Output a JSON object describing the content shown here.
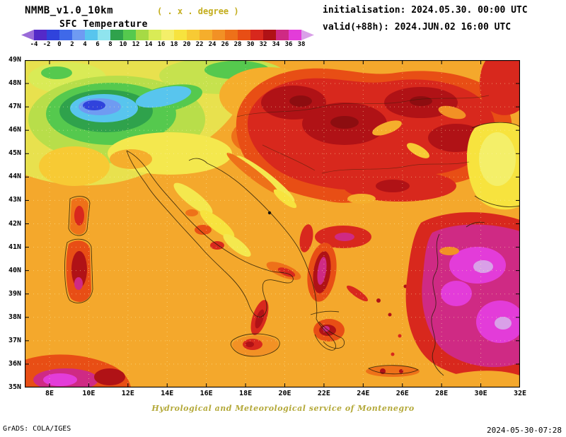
{
  "header": {
    "model": "NMMB_v1.0_10km",
    "grid_note": "( . x . degree )",
    "variable": "SFC Temperature",
    "init_label": "initialisation: 2024.05.30. 00:00 UTC",
    "valid_label": "valid(+88h): 2024.JUN.02 16:00 UTC"
  },
  "colorbar": {
    "ticks": [
      "-4",
      "-2",
      "0",
      "2",
      "4",
      "6",
      "8",
      "10",
      "12",
      "14",
      "16",
      "18",
      "20",
      "22",
      "24",
      "26",
      "28",
      "30",
      "32",
      "34",
      "36",
      "38"
    ],
    "colors": [
      "#9a6bd8",
      "#5429c8",
      "#3043dc",
      "#3f69e9",
      "#6f9bf2",
      "#58c5ee",
      "#8fe4ee",
      "#2fa24c",
      "#55c94e",
      "#a6da45",
      "#d9eb56",
      "#f4ef69",
      "#f7e33e",
      "#f7ca34",
      "#f5ae2c",
      "#f29125",
      "#ee7119",
      "#e84e15",
      "#d8281d",
      "#b01216",
      "#cf2a84",
      "#e33cd9",
      "#d9a0e8"
    ]
  },
  "map": {
    "lat_ticks": [
      "49N",
      "48N",
      "47N",
      "46N",
      "45N",
      "44N",
      "43N",
      "42N",
      "41N",
      "40N",
      "39N",
      "38N",
      "37N",
      "36N",
      "35N"
    ],
    "lon_ticks": [
      "8E",
      "10E",
      "12E",
      "14E",
      "16E",
      "18E",
      "20E",
      "22E",
      "24E",
      "26E",
      "28E",
      "30E",
      "32E"
    ]
  },
  "footer": {
    "credit": "Hydrological and Meteorological service of Montenegro",
    "grads": "GrADS: COLA/IGES",
    "timestamp": "2024-05-30-07:28"
  },
  "chart_data": {
    "type": "heatmap",
    "title": "SFC Temperature",
    "model": "NMMB_v1.0_10km",
    "initialisation": "2024.05.30. 00:00 UTC",
    "valid": "2024.JUN.02 16:00 UTC (+88h)",
    "legend_position": "top",
    "levels_celsius": [
      -4,
      -2,
      0,
      2,
      4,
      6,
      8,
      10,
      12,
      14,
      16,
      18,
      20,
      22,
      24,
      26,
      28,
      30,
      32,
      34,
      36,
      38
    ],
    "palette": [
      "#9a6bd8",
      "#5429c8",
      "#3043dc",
      "#3f69e9",
      "#6f9bf2",
      "#58c5ee",
      "#8fe4ee",
      "#2fa24c",
      "#55c94e",
      "#a6da45",
      "#d9eb56",
      "#f4ef69",
      "#f7e33e",
      "#f7ca34",
      "#f5ae2c",
      "#f29125",
      "#ee7119",
      "#e84e15",
      "#d8281d",
      "#b01216",
      "#cf2a84",
      "#e33cd9",
      "#d9a0e8"
    ],
    "lat_range": [
      "35N",
      "49N"
    ],
    "lon_range": [
      "8E",
      "32E"
    ],
    "grid": "dotted graticule, 2deg lon x 1deg lat labels",
    "approx_field_grid": {
      "note": "approximate shaded SFC temperature (C) read from colors at 2-degree nodes",
      "lats": [
        49,
        47,
        45,
        43,
        41,
        39,
        37,
        35
      ],
      "lons": [
        8,
        10,
        12,
        14,
        16,
        18,
        20,
        22,
        24,
        26,
        28,
        30,
        32
      ],
      "values": [
        [
          18,
          16,
          18,
          22,
          28,
          30,
          28,
          28,
          28,
          30,
          28,
          26,
          28
        ],
        [
          6,
          2,
          8,
          18,
          28,
          32,
          32,
          30,
          32,
          30,
          24,
          20,
          28
        ],
        [
          18,
          18,
          22,
          24,
          28,
          28,
          32,
          32,
          32,
          32,
          30,
          20,
          20
        ],
        [
          24,
          24,
          24,
          24,
          26,
          26,
          28,
          30,
          30,
          32,
          30,
          20,
          22
        ],
        [
          24,
          24,
          24,
          26,
          26,
          24,
          28,
          26,
          28,
          30,
          34,
          30,
          28
        ],
        [
          24,
          30,
          24,
          24,
          26,
          24,
          30,
          24,
          26,
          30,
          34,
          34,
          30
        ],
        [
          24,
          26,
          24,
          26,
          28,
          24,
          26,
          28,
          26,
          28,
          34,
          32,
          30
        ],
        [
          26,
          34,
          30,
          28,
          26,
          24,
          24,
          24,
          26,
          26,
          28,
          28,
          28
        ]
      ]
    }
  }
}
